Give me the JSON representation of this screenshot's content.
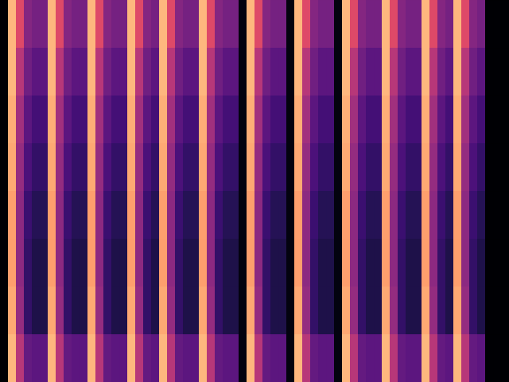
{
  "chart_data": {
    "type": "heatmap",
    "tick_labels": false,
    "color": "magma",
    "zlim": [
      0,
      1
    ],
    "values": [
      [
        0,
        0.85,
        0.6,
        0.38,
        0.34,
        0.34,
        0.85,
        0.6,
        0.38,
        0.34,
        0.34,
        0.85,
        0.6,
        0.38,
        0.34,
        0.34,
        0.85,
        0.6,
        0.38,
        0.34,
        0.85,
        0.6,
        0.38,
        0.34,
        0.34,
        0.85,
        0.6,
        0.38,
        0.34,
        0.34,
        0.03,
        0.85,
        0.6,
        0.38,
        0.34,
        0.34,
        0.03,
        0.85,
        0.6,
        0.38,
        0.34,
        0.34,
        0.03,
        0.85,
        0.6,
        0.38,
        0.34,
        0.34,
        0.85,
        0.6,
        0.38,
        0.34,
        0.34,
        0.85,
        0.6,
        0.38,
        0.34,
        0.85,
        0.6,
        0.38,
        0.34,
        0,
        0,
        0
      ],
      [
        0,
        0.85,
        0.5,
        0.33,
        0.28,
        0.28,
        0.85,
        0.5,
        0.33,
        0.28,
        0.28,
        0.85,
        0.5,
        0.33,
        0.28,
        0.28,
        0.85,
        0.5,
        0.33,
        0.28,
        0.85,
        0.5,
        0.33,
        0.28,
        0.28,
        0.85,
        0.5,
        0.33,
        0.28,
        0.28,
        0.03,
        0.85,
        0.5,
        0.33,
        0.28,
        0.28,
        0.03,
        0.85,
        0.5,
        0.33,
        0.28,
        0.28,
        0.03,
        0.85,
        0.5,
        0.33,
        0.28,
        0.28,
        0.85,
        0.5,
        0.33,
        0.28,
        0.28,
        0.85,
        0.5,
        0.33,
        0.28,
        0.85,
        0.5,
        0.33,
        0.28,
        0,
        0,
        0
      ],
      [
        0,
        0.83,
        0.45,
        0.28,
        0.22,
        0.22,
        0.83,
        0.45,
        0.28,
        0.22,
        0.22,
        0.83,
        0.45,
        0.28,
        0.22,
        0.22,
        0.83,
        0.45,
        0.28,
        0.22,
        0.83,
        0.45,
        0.28,
        0.22,
        0.22,
        0.83,
        0.45,
        0.28,
        0.22,
        0.22,
        0.03,
        0.83,
        0.45,
        0.28,
        0.22,
        0.22,
        0.03,
        0.83,
        0.45,
        0.28,
        0.22,
        0.22,
        0.03,
        0.83,
        0.45,
        0.28,
        0.22,
        0.22,
        0.83,
        0.45,
        0.28,
        0.22,
        0.22,
        0.83,
        0.45,
        0.28,
        0.22,
        0.83,
        0.45,
        0.28,
        0.22,
        0,
        0,
        0
      ],
      [
        0,
        0.82,
        0.42,
        0.24,
        0.18,
        0.18,
        0.82,
        0.42,
        0.24,
        0.18,
        0.18,
        0.82,
        0.42,
        0.24,
        0.18,
        0.18,
        0.82,
        0.42,
        0.24,
        0.18,
        0.82,
        0.42,
        0.24,
        0.18,
        0.18,
        0.82,
        0.42,
        0.24,
        0.18,
        0.18,
        0.03,
        0.82,
        0.42,
        0.24,
        0.18,
        0.18,
        0.03,
        0.82,
        0.42,
        0.24,
        0.18,
        0.18,
        0.03,
        0.82,
        0.42,
        0.24,
        0.18,
        0.18,
        0.82,
        0.42,
        0.24,
        0.18,
        0.18,
        0.82,
        0.42,
        0.24,
        0.18,
        0.82,
        0.42,
        0.24,
        0.18,
        0,
        0,
        0
      ],
      [
        0,
        0.8,
        0.4,
        0.2,
        0.15,
        0.15,
        0.8,
        0.4,
        0.2,
        0.15,
        0.15,
        0.8,
        0.4,
        0.2,
        0.15,
        0.15,
        0.8,
        0.4,
        0.2,
        0.15,
        0.8,
        0.4,
        0.2,
        0.15,
        0.15,
        0.8,
        0.4,
        0.2,
        0.15,
        0.15,
        0.03,
        0.8,
        0.4,
        0.2,
        0.15,
        0.15,
        0.03,
        0.8,
        0.4,
        0.2,
        0.15,
        0.15,
        0.03,
        0.8,
        0.4,
        0.2,
        0.15,
        0.15,
        0.8,
        0.4,
        0.2,
        0.15,
        0.15,
        0.8,
        0.4,
        0.2,
        0.15,
        0.8,
        0.4,
        0.2,
        0.15,
        0,
        0,
        0
      ],
      [
        0,
        0.8,
        0.4,
        0.18,
        0.13,
        0.13,
        0.8,
        0.4,
        0.18,
        0.13,
        0.13,
        0.8,
        0.4,
        0.18,
        0.13,
        0.13,
        0.8,
        0.4,
        0.18,
        0.13,
        0.8,
        0.4,
        0.18,
        0.13,
        0.13,
        0.8,
        0.4,
        0.18,
        0.13,
        0.13,
        0.03,
        0.8,
        0.4,
        0.18,
        0.13,
        0.13,
        0.03,
        0.8,
        0.4,
        0.18,
        0.13,
        0.13,
        0.03,
        0.8,
        0.4,
        0.18,
        0.13,
        0.13,
        0.8,
        0.4,
        0.18,
        0.13,
        0.13,
        0.8,
        0.4,
        0.18,
        0.13,
        0.8,
        0.4,
        0.18,
        0.13,
        0,
        0,
        0
      ],
      [
        0,
        0.82,
        0.42,
        0.18,
        0.13,
        0.13,
        0.82,
        0.42,
        0.18,
        0.13,
        0.13,
        0.82,
        0.42,
        0.18,
        0.13,
        0.13,
        0.82,
        0.42,
        0.18,
        0.13,
        0.82,
        0.42,
        0.18,
        0.13,
        0.13,
        0.82,
        0.42,
        0.18,
        0.13,
        0.13,
        0.03,
        0.82,
        0.42,
        0.18,
        0.13,
        0.13,
        0.03,
        0.82,
        0.42,
        0.18,
        0.13,
        0.13,
        0.03,
        0.82,
        0.42,
        0.18,
        0.13,
        0.13,
        0.82,
        0.42,
        0.18,
        0.13,
        0.13,
        0.82,
        0.42,
        0.18,
        0.13,
        0.82,
        0.42,
        0.18,
        0.13,
        0,
        0,
        0
      ],
      [
        0,
        0.85,
        0.5,
        0.3,
        0.28,
        0.28,
        0.85,
        0.5,
        0.3,
        0.28,
        0.28,
        0.85,
        0.5,
        0.3,
        0.28,
        0.28,
        0.85,
        0.5,
        0.3,
        0.28,
        0.85,
        0.5,
        0.3,
        0.28,
        0.28,
        0.85,
        0.5,
        0.3,
        0.28,
        0.28,
        0.03,
        0.85,
        0.5,
        0.3,
        0.28,
        0.28,
        0.03,
        0.85,
        0.5,
        0.3,
        0.28,
        0.28,
        0.03,
        0.85,
        0.5,
        0.3,
        0.28,
        0.28,
        0.85,
        0.5,
        0.3,
        0.28,
        0.28,
        0.85,
        0.5,
        0.3,
        0.28,
        0.85,
        0.5,
        0.3,
        0.28,
        0,
        0,
        0
      ]
    ]
  }
}
